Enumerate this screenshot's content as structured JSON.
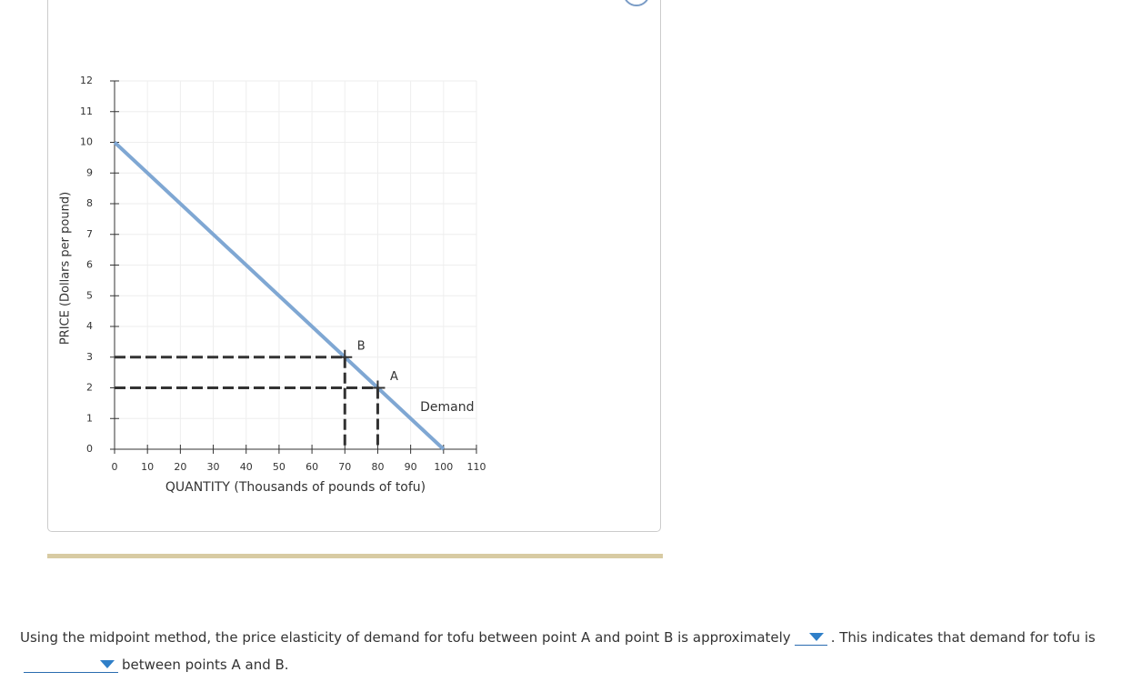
{
  "chart_data": {
    "type": "line",
    "xlabel": "QUANTITY (Thousands of pounds of tofu)",
    "ylabel": "PRICE (Dollars per pound)",
    "series": [
      {
        "name": "Demand",
        "color": "#7fa7d3",
        "x": [
          0,
          100
        ],
        "values": [
          10,
          0
        ]
      }
    ],
    "points": [
      {
        "label": "A",
        "x": 80,
        "y": 2
      },
      {
        "label": "B",
        "x": 70,
        "y": 3
      }
    ],
    "xlim": [
      0,
      110
    ],
    "ylim": [
      0,
      12
    ],
    "xticks": [
      0,
      10,
      20,
      30,
      40,
      50,
      60,
      70,
      80,
      90,
      100,
      110
    ],
    "yticks": [
      0,
      1,
      2,
      3,
      4,
      5,
      6,
      7,
      8,
      9,
      10,
      11,
      12
    ],
    "grid": true
  },
  "question": {
    "before": "Using the midpoint method, the price elasticity of demand for tofu between point A and point B is approximately",
    "middle": ". This indicates that demand for tofu is",
    "after": "between points A and B."
  }
}
